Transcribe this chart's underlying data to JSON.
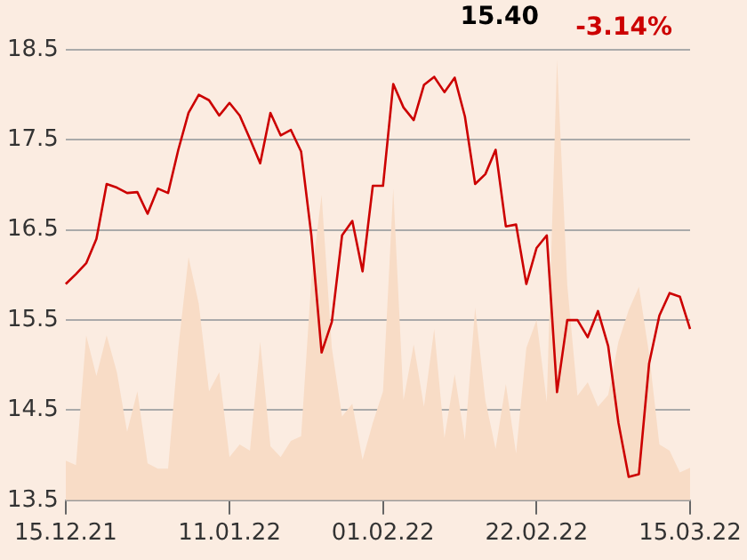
{
  "chart_data": {
    "type": "line",
    "annotations": [
      "15.40",
      "-3.14%"
    ],
    "categories": [
      "15.12.21",
      null,
      null,
      null,
      null,
      null,
      null,
      null,
      null,
      null,
      null,
      null,
      null,
      null,
      null,
      null,
      "11.01.22",
      null,
      null,
      null,
      null,
      null,
      null,
      null,
      null,
      null,
      null,
      null,
      null,
      null,
      null,
      "01.02.22",
      null,
      null,
      null,
      null,
      null,
      null,
      null,
      null,
      null,
      null,
      null,
      null,
      null,
      null,
      "22.02.22",
      null,
      null,
      null,
      null,
      null,
      null,
      null,
      null,
      null,
      null,
      null,
      null,
      null,
      null,
      "15.03.22"
    ],
    "series": [
      {
        "type": "area",
        "color": "#f8dcc6",
        "values": [
          13.94,
          13.89,
          15.33,
          14.88,
          15.33,
          14.92,
          14.26,
          14.71,
          13.91,
          13.85,
          13.85,
          15.19,
          16.2,
          15.68,
          14.71,
          14.92,
          13.98,
          14.12,
          14.05,
          15.26,
          14.1,
          13.98,
          14.16,
          14.21,
          15.95,
          16.89,
          15.19,
          14.43,
          14.57,
          13.95,
          14.36,
          14.71,
          16.96,
          14.61,
          15.23,
          14.54,
          15.4,
          14.19,
          14.9,
          14.17,
          15.64,
          14.61,
          14.07,
          14.79,
          14.02,
          15.19,
          15.5,
          14.59,
          18.39,
          15.89,
          14.66,
          14.81,
          14.54,
          14.67,
          15.26,
          15.61,
          15.87,
          15.12,
          14.12,
          14.05,
          13.81,
          13.86
        ]
      },
      {
        "type": "line",
        "color": "#cc0000",
        "values": [
          15.9,
          16.01,
          16.13,
          16.4,
          17.01,
          16.97,
          16.91,
          16.92,
          16.68,
          16.96,
          16.91,
          17.39,
          17.8,
          18.0,
          17.94,
          17.77,
          17.91,
          17.77,
          17.51,
          17.24,
          17.8,
          17.55,
          17.61,
          17.37,
          16.44,
          15.14,
          15.48,
          16.44,
          16.6,
          16.04,
          16.99,
          16.99,
          18.12,
          17.86,
          17.72,
          18.11,
          18.2,
          18.03,
          18.19,
          17.76,
          17.01,
          17.12,
          17.39,
          16.54,
          16.56,
          15.9,
          16.3,
          16.44,
          14.7,
          15.5,
          15.5,
          15.31,
          15.6,
          15.21,
          14.36,
          13.76,
          13.79,
          15.02,
          15.55,
          15.8,
          15.76,
          15.4
        ]
      }
    ],
    "ylim": [
      13.5,
      18.5
    ],
    "yticks": [
      13.5,
      14.5,
      15.5,
      16.5,
      17.5,
      18.5
    ],
    "grid": "y",
    "legend": false
  }
}
